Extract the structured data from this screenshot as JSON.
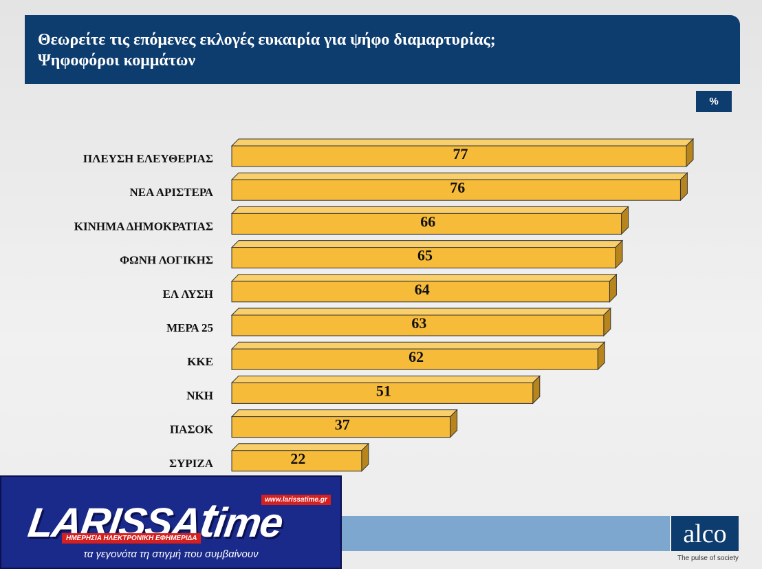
{
  "header": {
    "title_line1": "Θεωρείτε τις επόμενες εκλογές ευκαιρία για ψήφο διαμαρτυρίας;",
    "title_line2": "Ψηφοφόροι κομμάτων"
  },
  "unit_badge": "%",
  "chart_data": {
    "type": "bar",
    "orientation": "horizontal",
    "title": "Θεωρείτε τις επόμενες εκλογές ευκαιρία για ψήφο διαμαρτυρίας;",
    "subtitle": "Ψηφοφόροι κομμάτων",
    "unit": "%",
    "categories": [
      "ΠΛΕΥΣΗ ΕΛΕΥΘΕΡΙΑΣ",
      "ΝΕΑ ΑΡΙΣΤΕΡΑ",
      "ΚΙΝΗΜΑ ΔΗΜΟΚΡΑΤΙΑΣ",
      "ΦΩΝΗ ΛΟΓΙΚΗΣ",
      "ΕΛ ΛΥΣΗ",
      "ΜΕΡΑ 25",
      "ΚΚΕ",
      "ΝΚΗ",
      "ΠΑΣΟΚ",
      "ΣΥΡΙΖΑ"
    ],
    "values": [
      77,
      76,
      66,
      65,
      64,
      63,
      62,
      51,
      37,
      22
    ],
    "xlim": [
      0,
      77
    ],
    "bar_color": "#f7bb3a",
    "grid": false,
    "legend": "none"
  },
  "footer": {
    "alco_logo": "alco",
    "alco_tagline": "The pulse of society"
  },
  "overlay_logo": {
    "brand": "LARISSA",
    "brand_t": "t",
    "brand_rest": "ime",
    "url": "www.larissatime.gr",
    "subtitle": "ΗΜΕΡΗΣΙΑ ΗΛΕΚΤΡΟΝΙΚΗ ΕΦΗΜΕΡΙΔΑ",
    "slogan": "τα γεγονότα τη στιγμή που συμβαίνουν"
  }
}
